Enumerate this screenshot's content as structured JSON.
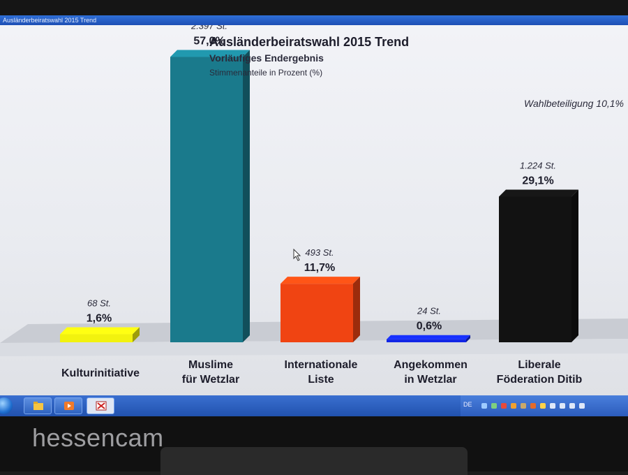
{
  "window": {
    "title": "Ausländerbeiratswahl 2015 Trend"
  },
  "chart_data": {
    "type": "bar",
    "title": "Ausländerbeiratswahl 2015 Trend",
    "subtitle": "Vorläufiges Endergebnis",
    "unit_label": "Stimmenanteile in Prozent (%)",
    "annotation": "Wahlbeteiligung 10,1%",
    "ylim": [
      0,
      60
    ],
    "grid": false,
    "categories": [
      [
        "Kulturinitiative"
      ],
      [
        "Muslime",
        "für Wetzlar"
      ],
      [
        "Internationale",
        "Liste"
      ],
      [
        "Angekommen",
        "in Wetzlar"
      ],
      [
        "Liberale",
        "Föderation Ditib"
      ]
    ],
    "values": [
      1.6,
      57.0,
      11.7,
      0.6,
      29.1
    ],
    "value_labels": [
      "1,6%",
      "57,0%",
      "11,7%",
      "0,6%",
      "29,1%"
    ],
    "votes": [
      68,
      2397,
      493,
      24,
      1224
    ],
    "votes_labels": [
      "68 St.",
      "2.397 St.",
      "493 St.",
      "24 St.",
      "1.224 St."
    ],
    "colors": [
      "#f2f20e",
      "#1a7a8c",
      "#f04412",
      "#1226e6",
      "#121212"
    ]
  },
  "taskbar": {
    "language": "DE"
  },
  "watermark": "hessencam"
}
